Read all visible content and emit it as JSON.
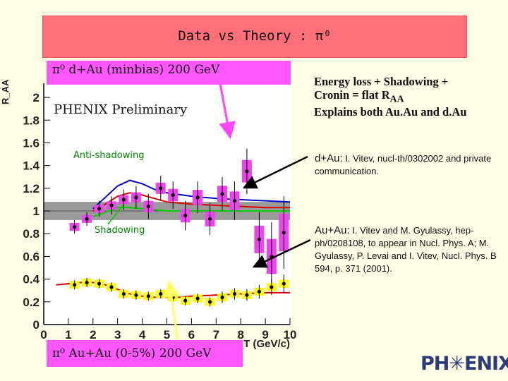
{
  "slide": {
    "title": "Data vs Theory : π⁰",
    "label_dau": "π⁰ d+Au (minbias) 200 GeV",
    "label_auau": "π⁰ Au+Au (0-5%) 200 GeV",
    "energy_note_line1": "Energy loss + Shadowing +",
    "energy_note_line2_pre": "Cronin = flat R",
    "energy_note_line2_sub": "AA",
    "energy_note_line3": "Explains both Au.Au and d.Au",
    "ref_dau_lead": "d+Au:",
    "ref_dau_text": " I. Vitev, nucl-th/0302002 and private communication.",
    "ref_auau_lead": "Au+Au:",
    "ref_auau_text": " I. Vitev and M. Gyulassy, hep-ph/0208108, to appear in Nucl. Phys. A; M. Gyulassy, P. Levai and I. Vitev, Nucl. Phys. B 594, p. 371 (2001).",
    "logo": "PH✳ENIX",
    "colors": {
      "banner": "#ff6f78",
      "label_box": "#ff55ff",
      "dau_error_box": "#ee44ee",
      "auau_error_box": "#ffff00",
      "band": "#9a9a9a",
      "blue_curve": "#0000cc",
      "red_curve": "#dd0000",
      "green_curve": "#00cc00"
    }
  },
  "chart_data": {
    "type": "scatter",
    "title": "",
    "xlabel": "p_T (GeV/c)",
    "ylabel": "R_AA",
    "xlim": [
      0,
      10
    ],
    "ylim": [
      0,
      2.1
    ],
    "xticks": [
      "0",
      "1",
      "2",
      "3",
      "4",
      "5",
      "6",
      "7",
      "8",
      "9",
      "10"
    ],
    "yticks": [
      "0",
      "0.2",
      "0.4",
      "0.6",
      "0.8",
      "1",
      "1.2",
      "1.4",
      "1.6",
      "1.8",
      "2"
    ],
    "annotations": [
      "PHENIX Preliminary",
      "Anti-shadowing",
      "Shadowing"
    ],
    "normalization_band": [
      0.92,
      1.08
    ],
    "series": [
      {
        "name": "π⁰ d+Au (minbias) 200 GeV",
        "x": [
          1.25,
          1.75,
          2.25,
          2.75,
          3.25,
          3.75,
          4.25,
          4.75,
          5.25,
          5.75,
          6.25,
          6.75,
          7.25,
          7.75,
          8.25,
          8.75,
          9.25,
          9.75
        ],
        "y": [
          0.86,
          0.93,
          1.02,
          1.05,
          1.1,
          1.12,
          1.04,
          1.2,
          1.14,
          0.96,
          1.12,
          0.93,
          1.15,
          1.09,
          1.35,
          0.75,
          0.6,
          0.81
        ],
        "err": [
          0.04,
          0.04,
          0.05,
          0.06,
          0.07,
          0.08,
          0.09,
          0.09,
          0.1,
          0.11,
          0.12,
          0.12,
          0.13,
          0.15,
          0.18,
          0.22,
          0.28,
          0.3
        ]
      },
      {
        "name": "π⁰ Au+Au (0-5%) 200 GeV",
        "x": [
          1.25,
          1.75,
          2.25,
          2.75,
          3.25,
          3.75,
          4.25,
          4.75,
          5.25,
          5.75,
          6.25,
          6.75,
          7.25,
          7.75,
          8.25,
          8.75,
          9.25,
          9.75
        ],
        "y": [
          0.35,
          0.37,
          0.36,
          0.33,
          0.27,
          0.26,
          0.25,
          0.27,
          0.24,
          0.21,
          0.23,
          0.2,
          0.24,
          0.27,
          0.26,
          0.29,
          0.33,
          0.36
        ],
        "err": [
          0.02,
          0.02,
          0.02,
          0.02,
          0.02,
          0.02,
          0.02,
          0.02,
          0.02,
          0.02,
          0.02,
          0.02,
          0.03,
          0.03,
          0.03,
          0.04,
          0.05,
          0.06
        ]
      }
    ],
    "curves": [
      {
        "color": "blue",
        "x": [
          2.0,
          2.5,
          3.0,
          3.5,
          4.0,
          4.5,
          5.0,
          6.0,
          7.0,
          8.0,
          9.0,
          10.0
        ],
        "y": [
          1.02,
          1.12,
          1.22,
          1.27,
          1.24,
          1.19,
          1.16,
          1.13,
          1.11,
          1.1,
          1.09,
          1.08
        ]
      },
      {
        "color": "red",
        "x": [
          2.0,
          2.5,
          3.0,
          3.5,
          4.0,
          4.5,
          5.0,
          6.0,
          7.0,
          8.0,
          9.0,
          10.0
        ],
        "y": [
          1.0,
          1.06,
          1.13,
          1.16,
          1.14,
          1.11,
          1.08,
          1.06,
          1.05,
          1.04,
          1.03,
          1.03
        ]
      },
      {
        "color": "green",
        "x": [
          2.0,
          2.5,
          3.0,
          3.5,
          4.0,
          4.5,
          5.0,
          6.0,
          7.0,
          8.0,
          9.0,
          10.0
        ],
        "y": [
          0.95,
          0.99,
          1.03,
          1.03,
          1.02,
          1.01,
          1.0,
          1.0,
          1.0,
          1.0,
          1.0,
          1.0
        ]
      },
      {
        "color": "red",
        "x": [
          0.5,
          1.0,
          1.5,
          2.0,
          2.5,
          3.0,
          3.5,
          4.0,
          4.5,
          5.0,
          5.5,
          6.0,
          7.0,
          8.0,
          9.0,
          10.0
        ],
        "y": [
          0.35,
          0.36,
          0.37,
          0.37,
          0.35,
          0.31,
          0.27,
          0.25,
          0.24,
          0.24,
          0.24,
          0.25,
          0.26,
          0.27,
          0.28,
          0.28
        ]
      }
    ]
  }
}
